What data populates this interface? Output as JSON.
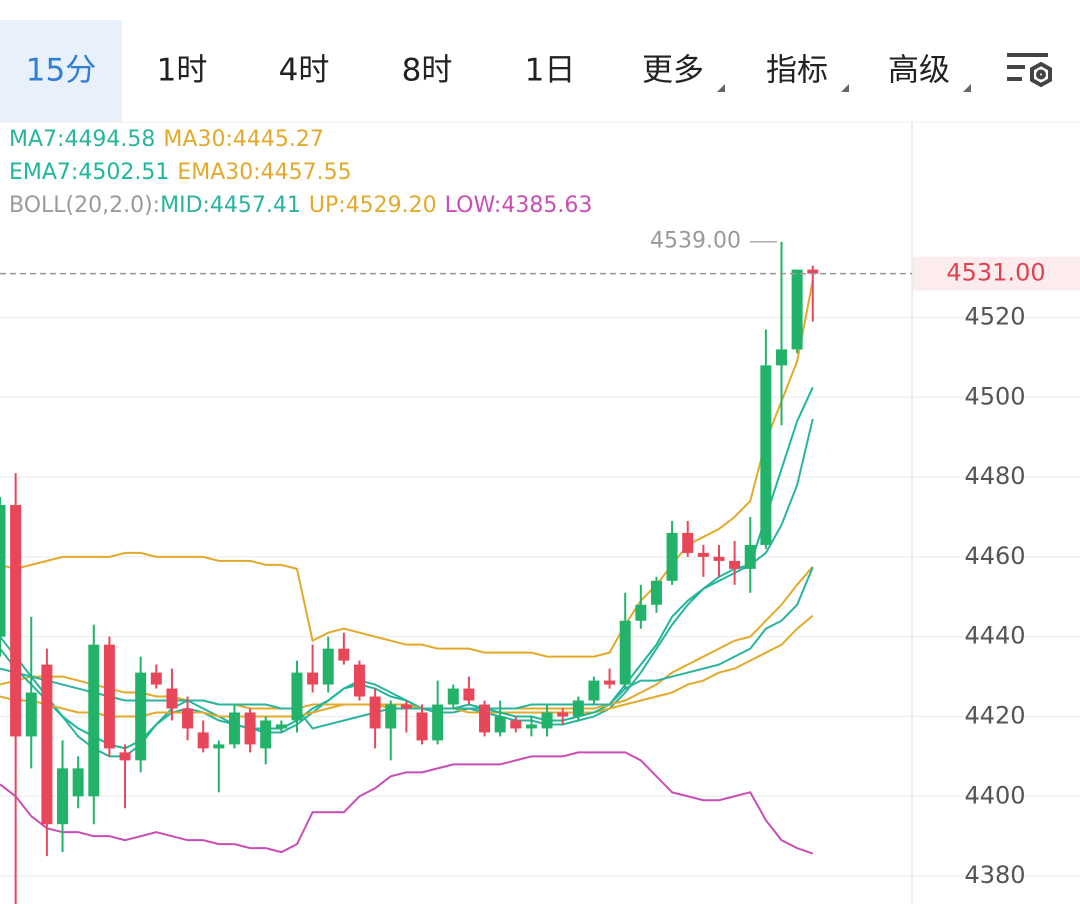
{
  "tabs": [
    "15分",
    "1时",
    "4时",
    "8时",
    "1日",
    "更多",
    "指标",
    "高级"
  ],
  "chart_data": {
    "type": "candlestick",
    "up_color": "#22b26a",
    "down_color": "#e8475a",
    "open": [
      4440,
      4473,
      4415,
      4433,
      4393,
      4400,
      4400,
      4438,
      4411,
      4409,
      4431,
      4427,
      4422,
      4416,
      4412,
      4413,
      4421,
      4412,
      4417,
      4419,
      4431,
      4428,
      4437,
      4433,
      4425,
      4417,
      4423,
      4421,
      4414,
      4423,
      4427,
      4423,
      4416,
      4419,
      4417,
      4417,
      4421,
      4420,
      4424,
      4429,
      4428,
      4444,
      4448,
      4454,
      4466,
      4461,
      4460,
      4459,
      4457,
      4463,
      4508,
      4512,
      4532
    ],
    "high": [
      4475,
      4481,
      4445,
      4437,
      4414,
      4410,
      4443,
      4440,
      4413,
      4435,
      4433,
      4432,
      4425,
      4419,
      4414,
      4423,
      4422,
      4420,
      4419,
      4434,
      4438,
      4440,
      4441,
      4434,
      4427,
      4424,
      4424,
      4423,
      4429,
      4428,
      4430,
      4424,
      4424,
      4420,
      4420,
      4423,
      4422,
      4425,
      4430,
      4432,
      4451,
      4453,
      4455,
      4469,
      4469,
      4463,
      4463,
      4464,
      4470,
      4517,
      4539,
      4532,
      4533
    ],
    "low": [
      4435,
      4373,
      4407,
      4385,
      4386,
      4397,
      4393,
      4410,
      4397,
      4406,
      4427,
      4419,
      4414,
      4411,
      4401,
      4412,
      4411,
      4408,
      4416,
      4416,
      4426,
      4426,
      4433,
      4424,
      4412,
      4409,
      4416,
      4413,
      4413,
      4422,
      4423,
      4415,
      4415,
      4416,
      4415,
      4415,
      4418,
      4419,
      4423,
      4427,
      4427,
      4442,
      4446,
      4453,
      4460,
      4455,
      4455,
      4453,
      4451,
      4462,
      4493,
      4511,
      4519
    ],
    "close": [
      4473,
      4415,
      4426,
      4393,
      4407,
      4407,
      4438,
      4412,
      4409,
      4431,
      4428,
      4422,
      4417,
      4412,
      4413,
      4421,
      4413,
      4419,
      4418,
      4431,
      4428,
      4437,
      4434,
      4425,
      4417,
      4423,
      4422,
      4414,
      4423,
      4427,
      4424,
      4416,
      4420,
      4417,
      4418,
      4421,
      4420,
      4424,
      4429,
      4428,
      4444,
      4448,
      4454,
      4466,
      4461,
      4460,
      4459,
      4457,
      4463,
      4508,
      4512,
      4532,
      4531
    ],
    "series": [
      {
        "name": "MA7:4494.58",
        "color": "#2ab39e",
        "values": [
          4440,
          4435,
          4430,
          4425,
          4420,
          4415,
          4412,
          4410,
          4410,
          4413,
          4418,
          4422,
          4424,
          4422,
          4420,
          4418,
          4417,
          4416,
          4416,
          4418,
          4421,
          4424,
          4427,
          4429,
          4428,
          4426,
          4424,
          4422,
          4421,
          4421,
          4422,
          4421,
          4420,
          4419,
          4419,
          4418,
          4418,
          4419,
          4420,
          4422,
          4426,
          4431,
          4437,
          4443,
          4448,
          4452,
          4455,
          4457,
          4458,
          4461,
          4468,
          4478,
          4494.58
        ]
      },
      {
        "name": "MA30:4445.27",
        "color": "#e3a92a",
        "values": [
          4428,
          4429,
          4430,
          4430,
          4430,
          4429,
          4428,
          4427,
          4426,
          4426,
          4425,
          4425,
          4424,
          4424,
          4423,
          4423,
          4422,
          4422,
          4422,
          4422,
          4423,
          4423,
          4423,
          4423,
          4423,
          4422,
          4422,
          4422,
          4422,
          4422,
          4421,
          4421,
          4421,
          4421,
          4421,
          4421,
          4421,
          4421,
          4421,
          4422,
          4423,
          4424,
          4425,
          4426,
          4428,
          4429,
          4431,
          4432,
          4434,
          4436,
          4438,
          4442,
          4445.27
        ]
      },
      {
        "name": "EMA7:4502.51",
        "color": "#1fb79a",
        "values": [
          4437,
          4432,
          4428,
          4424,
          4420,
          4417,
          4415,
          4413,
          4412,
          4414,
          4418,
          4421,
          4422,
          4421,
          4419,
          4418,
          4417,
          4417,
          4417,
          4419,
          4422,
          4424,
          4427,
          4428,
          4427,
          4425,
          4424,
          4422,
          4422,
          4422,
          4423,
          4422,
          4421,
          4420,
          4420,
          4419,
          4419,
          4420,
          4421,
          4423,
          4428,
          4433,
          4438,
          4445,
          4449,
          4452,
          4454,
          4456,
          4458,
          4470,
          4482,
          4494,
          4502.51
        ]
      },
      {
        "name": "EMA30:4457.55",
        "color": "#e3a92a",
        "values": [
          4425,
          4424,
          4424,
          4423,
          4422,
          4421,
          4421,
          4420,
          4420,
          4420,
          4421,
          4421,
          4421,
          4421,
          4420,
          4420,
          4420,
          4420,
          4420,
          4420,
          4421,
          4422,
          4423,
          4423,
          4423,
          4423,
          4423,
          4422,
          4422,
          4422,
          4422,
          4422,
          4422,
          4422,
          4422,
          4422,
          4422,
          4422,
          4422,
          4423,
          4424,
          4426,
          4428,
          4431,
          4433,
          4435,
          4437,
          4439,
          4440,
          4444,
          4448,
          4453,
          4457.55
        ]
      },
      {
        "name": "MID:4457.41",
        "color": "#2ab39e",
        "values": [
          4432,
          4431,
          4430,
          4429,
          4428,
          4427,
          4426,
          4425,
          4424,
          4424,
          4424,
          4424,
          4424,
          4424,
          4423,
          4423,
          4423,
          4423,
          4422,
          4422,
          4417,
          4418,
          4419,
          4420,
          4421,
          4422,
          4422,
          4422,
          4422,
          4422,
          4422,
          4422,
          4422,
          4422,
          4423,
          4423,
          4423,
          4423,
          4423,
          4423,
          4427,
          4429,
          4429,
          4430,
          4431,
          4432,
          4433,
          4435,
          4437,
          4442,
          4444,
          4448,
          4457.41
        ]
      },
      {
        "name": "UP:4529.20",
        "color": "#e3a92a",
        "values": [
          4458,
          4457,
          4458,
          4459,
          4460,
          4460,
          4460,
          4460,
          4461,
          4461,
          4460,
          4460,
          4460,
          4460,
          4459,
          4459,
          4459,
          4458,
          4458,
          4457,
          4439,
          4441,
          4442,
          4441,
          4440,
          4439,
          4438,
          4438,
          4437,
          4437,
          4437,
          4436,
          4436,
          4436,
          4436,
          4435,
          4435,
          4435,
          4435,
          4436,
          4443,
          4449,
          4453,
          4458,
          4463,
          4465,
          4467,
          4470,
          4474,
          4489,
          4499,
          4509,
          4529.2
        ]
      },
      {
        "name": "LOW:4385.63",
        "color": "#c94db5",
        "values": [
          4403,
          4400,
          4395,
          4392,
          4391,
          4391,
          4390,
          4390,
          4389,
          4390,
          4391,
          4390,
          4389,
          4389,
          4388,
          4388,
          4387,
          4387,
          4386,
          4388,
          4396,
          4396,
          4396,
          4400,
          4402,
          4405,
          4406,
          4406,
          4407,
          4408,
          4408,
          4408,
          4408,
          4409,
          4410,
          4410,
          4410,
          4411,
          4411,
          4411,
          4411,
          4409,
          4405,
          4401,
          4400,
          4399,
          4399,
          4400,
          4401,
          4394,
          4389,
          4387,
          4385.63
        ]
      }
    ],
    "boll_label": "BOLL(20,2.0):",
    "current_price": {
      "value": 4531,
      "label": "4531.00"
    },
    "max_marker": {
      "value": 4539,
      "label": "4539.00"
    },
    "ylim": [
      4373,
      4569
    ],
    "yticks": [
      4380,
      4400,
      4420,
      4440,
      4460,
      4480,
      4500,
      4520
    ],
    "grid": true
  }
}
